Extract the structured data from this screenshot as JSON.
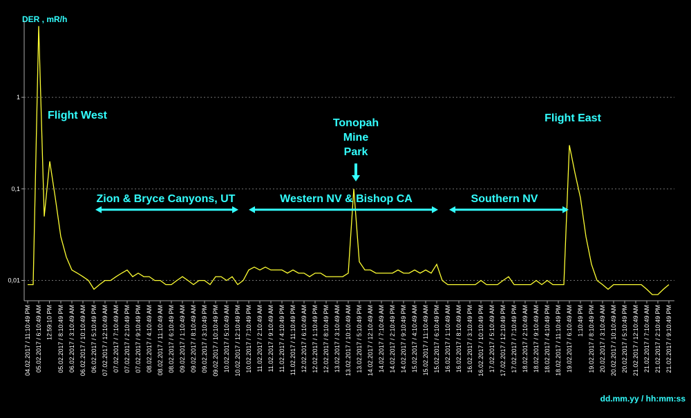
{
  "chart_data": {
    "type": "line",
    "y_label": "DER , mR/h",
    "x_label": "dd.mm.yy / hh:mm:ss",
    "log_y": true,
    "grid": true,
    "ylim": [
      0.006,
      6.3
    ],
    "yticks": [
      {
        "value": 0.01,
        "label": "0,01"
      },
      {
        "value": 0.1,
        "label": "0,1"
      },
      1
    ],
    "xlim": [
      0,
      116
    ],
    "xticks": [
      {
        "value": 0,
        "label": "04.02.2017 / 11:10:49 PM"
      },
      {
        "value": 2,
        "label": "05.02.2017 / 6:10:49 AM"
      },
      {
        "value": 3.95,
        "label": "12:59:10 PM"
      },
      {
        "value": 6,
        "label": "05.02.2017 / 8:10:49 PM"
      },
      {
        "value": 8,
        "label": "06.02.2017 / 3:10:49 AM"
      },
      {
        "value": 10,
        "label": "06.02.2017 / 10:10:49 AM"
      },
      {
        "value": 12,
        "label": "06.02.2017 / 5:10:49 PM"
      },
      {
        "value": 14,
        "label": "07.02.2017 / 12:10:49 AM"
      },
      {
        "value": 16,
        "label": "07.02.2017 / 7:10:49 AM"
      },
      {
        "value": 18,
        "label": "07.02.2017 / 2:10:49 PM"
      },
      {
        "value": 20,
        "label": "07.02.2017 / 9:10:49 PM"
      },
      {
        "value": 22,
        "label": "08.02.2017 / 4:10:49 AM"
      },
      {
        "value": 24,
        "label": "08.02.2017 / 11:10:49 AM"
      },
      {
        "value": 26,
        "label": "08.02.2017 / 6:10:49 PM"
      },
      {
        "value": 28,
        "label": "09.02.2017 / 1:10:49 AM"
      },
      {
        "value": 30,
        "label": "09.02.2017 / 8:10:49 AM"
      },
      {
        "value": 32,
        "label": "09.02.2017 / 3:10:49 PM"
      },
      {
        "value": 34,
        "label": "09.02.2017 / 10:10:49 PM"
      },
      {
        "value": 36,
        "label": "10.02.2017 / 5:10:49 AM"
      },
      {
        "value": 38,
        "label": "10.02.2017 / 12:10:49 PM"
      },
      {
        "value": 40,
        "label": "10.02.2017 / 7:10:49 PM"
      },
      {
        "value": 42,
        "label": "11.02.2017 / 2:10:49 AM"
      },
      {
        "value": 44,
        "label": "11.02.2017 / 9:10:49 AM"
      },
      {
        "value": 46,
        "label": "11.02.2017 / 4:10:49 PM"
      },
      {
        "value": 48,
        "label": "11.02.2017 / 11:10:49 PM"
      },
      {
        "value": 50,
        "label": "12.02.2017 / 6:10:49 AM"
      },
      {
        "value": 52,
        "label": "12.02.2017 / 1:10:49 PM"
      },
      {
        "value": 54,
        "label": "12.02.2017 / 8:10:49 PM"
      },
      {
        "value": 56,
        "label": "13.02.2017 / 3:10:49 AM"
      },
      {
        "value": 58,
        "label": "13.02.2017 / 10:10:49 AM"
      },
      {
        "value": 60,
        "label": "13.02.2017 / 5:10:49 PM"
      },
      {
        "value": 62,
        "label": "14.02.2017 / 12:10:49 AM"
      },
      {
        "value": 64,
        "label": "14.02.2017 / 7:10:49 AM"
      },
      {
        "value": 66,
        "label": "14.02.2017 / 2:10:49 PM"
      },
      {
        "value": 68,
        "label": "14.02.2017 / 9:10:49 PM"
      },
      {
        "value": 70,
        "label": "15.02.2017 / 4:10:49 AM"
      },
      {
        "value": 72,
        "label": "15.02.2017 / 11:10:49 AM"
      },
      {
        "value": 74,
        "label": "15.02.2017 / 6:10:49 PM"
      },
      {
        "value": 76,
        "label": "16.02.2017 / 1:10:49 AM"
      },
      {
        "value": 78,
        "label": "16.02.2017 / 8:10:49 AM"
      },
      {
        "value": 80,
        "label": "16.02.2017 / 3:10:49 PM"
      },
      {
        "value": 82,
        "label": "16.02.2017 / 10:10:49 PM"
      },
      {
        "value": 84,
        "label": "17.02.2017 / 5:10:49 AM"
      },
      {
        "value": 86,
        "label": "17.02.2017 / 12:10:49 PM"
      },
      {
        "value": 88,
        "label": "17.02.2017 / 7:10:49 PM"
      },
      {
        "value": 90,
        "label": "18.02.2017 / 2:10:49 AM"
      },
      {
        "value": 92,
        "label": "18.02.2017 / 9:10:49 AM"
      },
      {
        "value": 94,
        "label": "18.02.2017 / 4:10:49 PM"
      },
      {
        "value": 96,
        "label": "18.02.2017 / 11:10:49 PM"
      },
      {
        "value": 98,
        "label": "19.02.2017 / 6:10:49 AM"
      },
      {
        "value": 100,
        "label": "1:10:49 PM"
      },
      {
        "value": 102,
        "label": "19.02.2017 / 8:10:49 PM"
      },
      {
        "value": 104,
        "label": "20.02.2017 / 3:10:49 AM"
      },
      {
        "value": 106,
        "label": "20.02.2017 / 10:10:49 AM"
      },
      {
        "value": 108,
        "label": "20.02.2017 / 5:10:49 PM"
      },
      {
        "value": 110,
        "label": "21.02.2017 / 12:10:49 AM"
      },
      {
        "value": 112,
        "label": "21.02.2017 / 7:10:49 AM"
      },
      {
        "value": 114,
        "label": "21.02.2017 / 2:10:49 PM"
      },
      {
        "value": 116,
        "label": "21.02.2017 / 9:10:49 PM"
      }
    ],
    "series": [
      {
        "name": "DER",
        "color": "#ffff33",
        "values": [
          0.009,
          0.009,
          6,
          0.05,
          0.2,
          0.08,
          0.03,
          0.018,
          0.013,
          0.012,
          0.011,
          0.01,
          0.008,
          0.009,
          0.01,
          0.01,
          0.011,
          0.012,
          0.013,
          0.011,
          0.012,
          0.011,
          0.011,
          0.01,
          0.01,
          0.009,
          0.009,
          0.01,
          0.011,
          0.01,
          0.009,
          0.01,
          0.01,
          0.009,
          0.011,
          0.011,
          0.01,
          0.011,
          0.009,
          0.01,
          0.013,
          0.014,
          0.013,
          0.014,
          0.013,
          0.013,
          0.013,
          0.012,
          0.013,
          0.012,
          0.012,
          0.011,
          0.012,
          0.012,
          0.011,
          0.011,
          0.011,
          0.011,
          0.012,
          0.1,
          0.016,
          0.013,
          0.013,
          0.012,
          0.012,
          0.012,
          0.012,
          0.013,
          0.012,
          0.012,
          0.013,
          0.012,
          0.013,
          0.012,
          0.015,
          0.01,
          0.009,
          0.009,
          0.009,
          0.009,
          0.009,
          0.009,
          0.01,
          0.009,
          0.009,
          0.009,
          0.01,
          0.011,
          0.009,
          0.009,
          0.009,
          0.009,
          0.01,
          0.009,
          0.01,
          0.009,
          0.009,
          0.009,
          0.3,
          0.15,
          0.08,
          0.03,
          0.015,
          0.01,
          0.009,
          0.008,
          0.009,
          0.009,
          0.009,
          0.009,
          0.009,
          0.009,
          0.008,
          0.007,
          0.007,
          0.008,
          0.009
        ]
      }
    ],
    "annotations": [
      {
        "text": "Flight West"
      },
      {
        "text": "Zion & Bryce Canyons, UT"
      },
      {
        "text": "Western NV & Bishop CA"
      },
      {
        "text": "Southern NV"
      },
      {
        "lines": [
          "Tonopah",
          "Mine",
          "Park"
        ]
      },
      {
        "text": "Flight East"
      }
    ]
  }
}
